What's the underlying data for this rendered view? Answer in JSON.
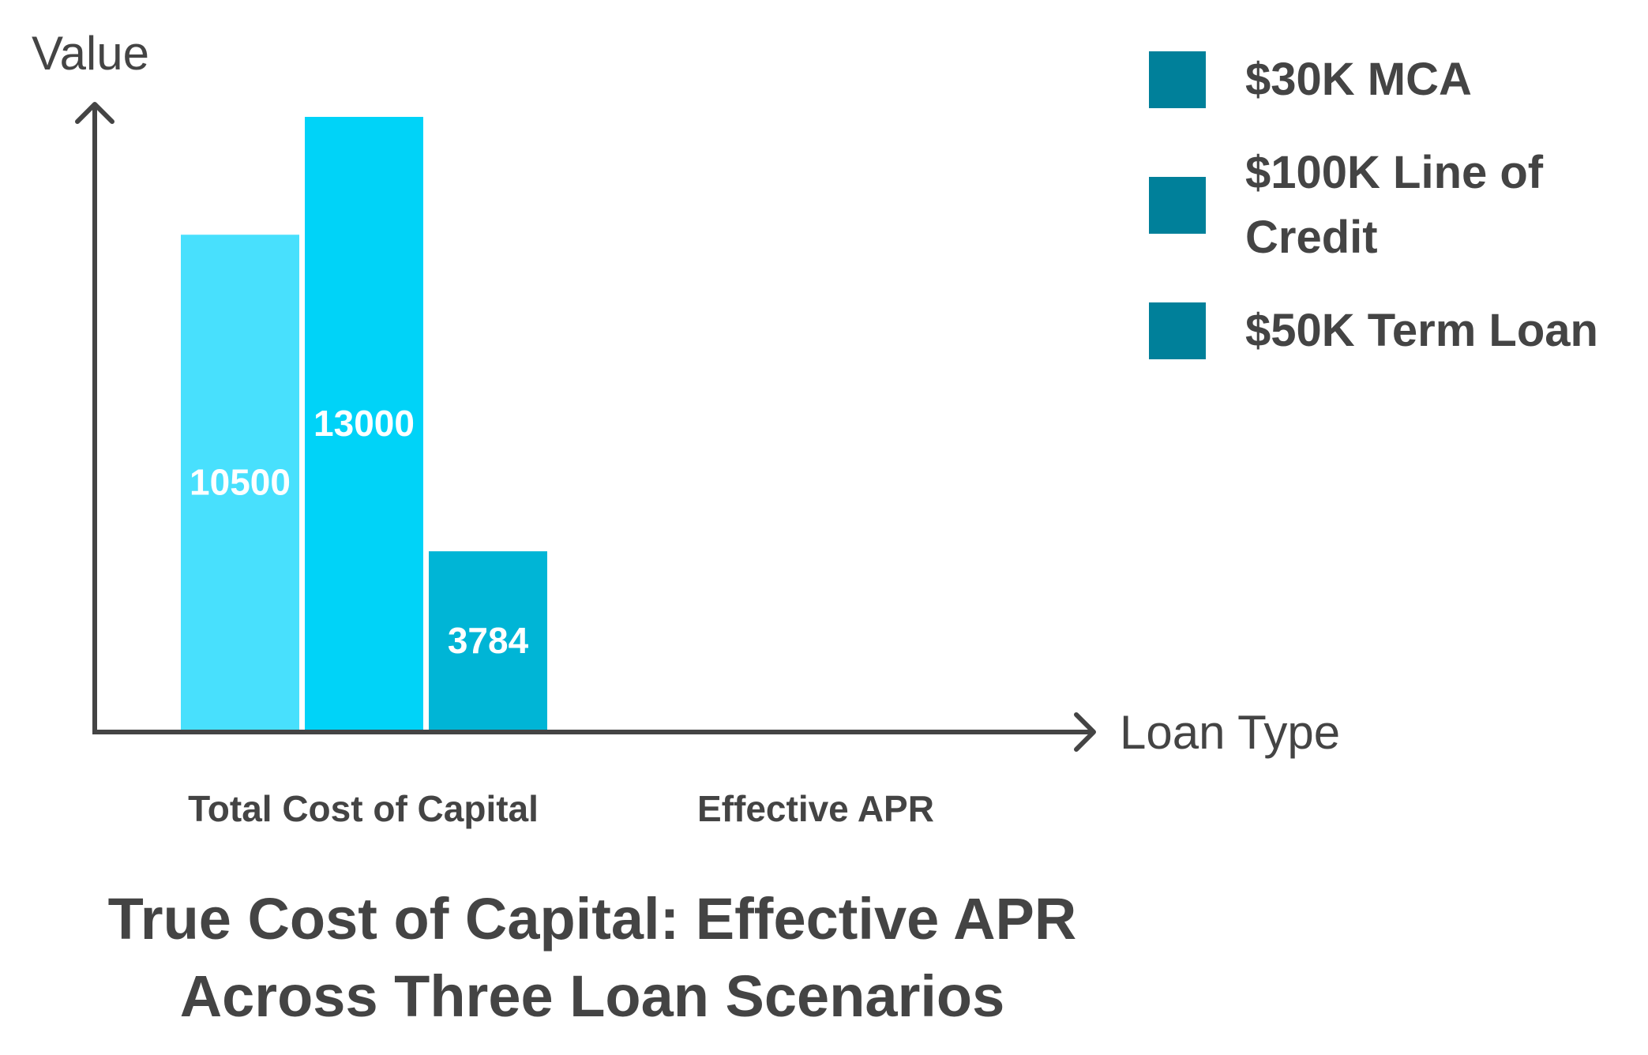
{
  "chart_data": {
    "type": "bar",
    "title": "True Cost of Capital: Effective APR Across Three Loan Scenarios",
    "xlabel": "Loan Type",
    "ylabel": "Value",
    "categories": [
      "Total Cost of Capital",
      "Effective APR"
    ],
    "series": [
      {
        "name": "$30K MCA",
        "values": [
          10500,
          null
        ],
        "color": "#48E0FD",
        "legend_color": "#00809A"
      },
      {
        "name": "$100K Line of Credit",
        "values": [
          13000,
          null
        ],
        "color": "#00D3F8",
        "legend_color": "#00809A"
      },
      {
        "name": "$50K Term Loan",
        "values": [
          3784,
          null
        ],
        "color": "#00B5D6",
        "legend_color": "#00809A"
      }
    ],
    "data_labels": [
      "10500",
      "13000",
      "3784"
    ],
    "ylim": [
      0,
      13000
    ],
    "grid": false,
    "legend_position": "top-right"
  }
}
